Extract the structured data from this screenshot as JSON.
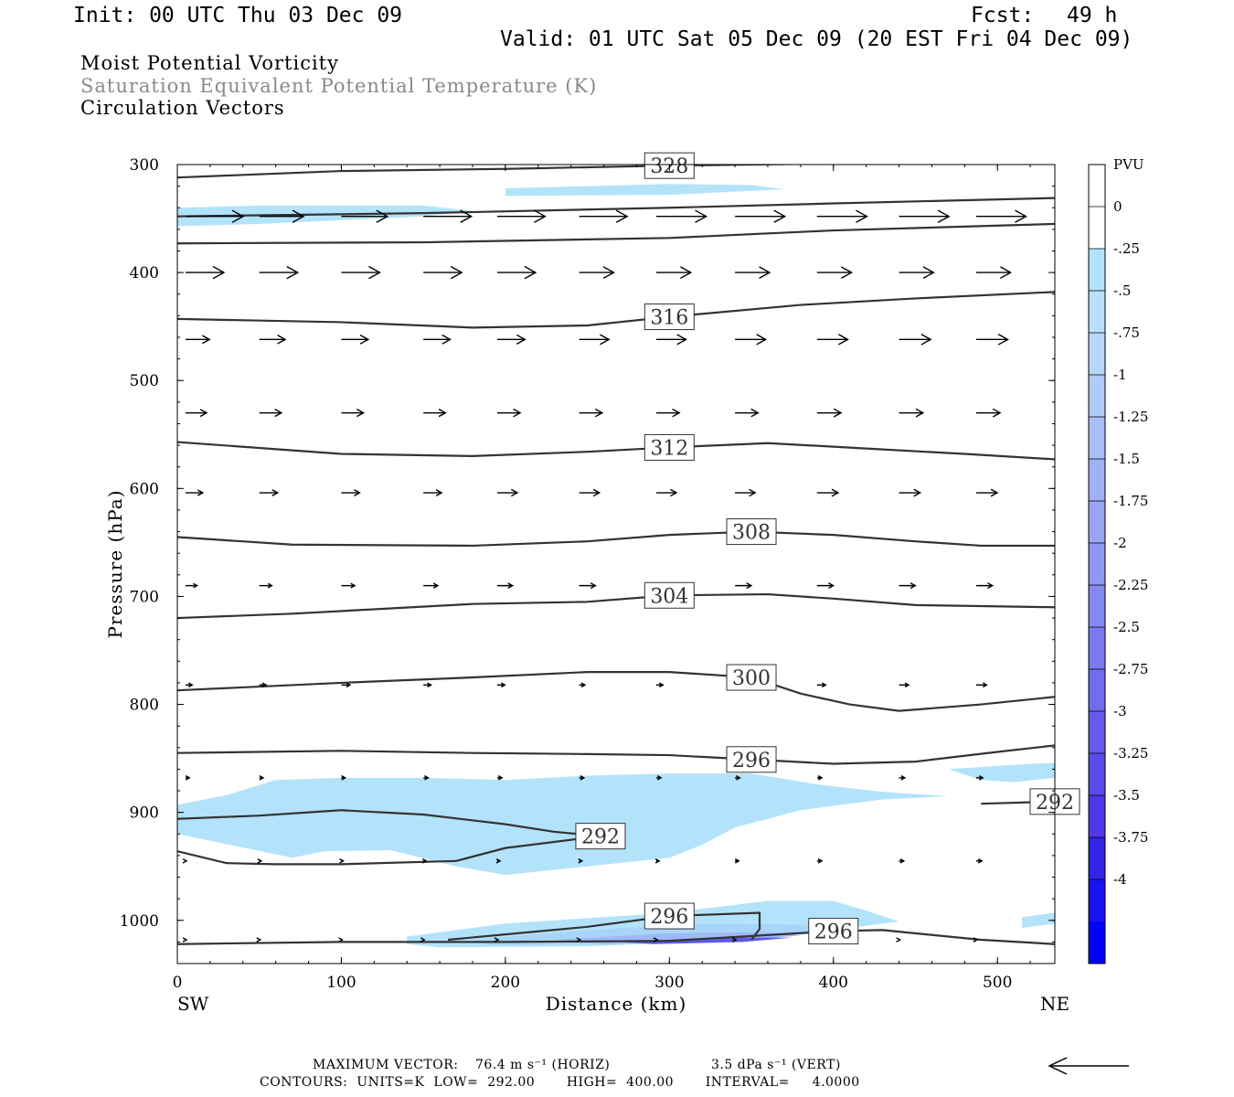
{
  "header": {
    "init": "Init: 00 UTC Thu 03 Dec 09",
    "fcst_label": "Fcst:",
    "fcst_value": "49 h",
    "valid": "Valid: 01 UTC Sat 05 Dec 09 (20 EST Fri 04 Dec 09)"
  },
  "fields": {
    "line1": "Moist Potential Vorticity",
    "line2": "Saturation Equivalent Potential Temperature (K)",
    "line3": "Circulation Vectors"
  },
  "footer": {
    "max_vector": "MAXIMUM VECTOR:",
    "horiz": "76.4 m s⁻¹ (HORIZ)",
    "vert": "3.5 dPa s⁻¹ (VERT)",
    "contours": "CONTOURS:  UNITS=K  LOW=  292.00       HIGH=  400.00       INTERVAL=     4.0000"
  },
  "colors": {
    "contour": "#333333",
    "vector": "#000000",
    "shade_light": "#b3e3fb",
    "shade_mid": "#9fb8f6",
    "shade_dark": "#5b5bea"
  },
  "chart_data": {
    "type": "cross-section",
    "xlabel": "Distance (km)",
    "ylabel": "Pressure (hPa)",
    "xlim": [
      0,
      535
    ],
    "ylim": [
      1040,
      300
    ],
    "x_ticks": [
      "0",
      "100",
      "200",
      "300",
      "400",
      "500"
    ],
    "y_ticks": [
      "300",
      "400",
      "500",
      "600",
      "700",
      "800",
      "900",
      "1000"
    ],
    "x_end_labels": {
      "left": "SW",
      "right": "NE"
    },
    "colorbar": {
      "unit": "PVU",
      "levels": [
        "0",
        "-.25",
        "-.5",
        "-.75",
        "-1",
        "-1.25",
        "-1.5",
        "-1.75",
        "-2",
        "-2.25",
        "-2.5",
        "-2.75",
        "-3",
        "-3.25",
        "-3.5",
        "-3.75",
        "-4"
      ],
      "colors": [
        "#ffffff",
        "#ffffff",
        "#b3e3fb",
        "#b9e0fb",
        "#b8d6fa",
        "#b0cbf9",
        "#a8bff8",
        "#9fb2f6",
        "#97a5f4",
        "#8e98f3",
        "#8489f1",
        "#7a7bef",
        "#706cee",
        "#655cec",
        "#5a4bea",
        "#4e38e8",
        "#3324e6",
        "#1a12f0",
        "#0000ff"
      ]
    },
    "theta_es_contours": [
      {
        "label": "328",
        "points": [
          [
            0,
            312
          ],
          [
            100,
            306
          ],
          [
            200,
            304
          ],
          [
            300,
            301
          ],
          [
            400,
            299
          ],
          [
            535,
            296
          ]
        ]
      },
      {
        "label": "",
        "points": [
          [
            0,
            348
          ],
          [
            150,
            345
          ],
          [
            300,
            340
          ],
          [
            400,
            336
          ],
          [
            535,
            331
          ]
        ]
      },
      {
        "label": "",
        "points": [
          [
            0,
            373
          ],
          [
            150,
            372
          ],
          [
            300,
            368
          ],
          [
            400,
            361
          ],
          [
            535,
            355
          ]
        ]
      },
      {
        "label": "316",
        "points": [
          [
            0,
            443
          ],
          [
            100,
            446
          ],
          [
            180,
            451
          ],
          [
            250,
            449
          ],
          [
            300,
            441
          ],
          [
            380,
            430
          ],
          [
            450,
            424
          ],
          [
            535,
            418
          ]
        ]
      },
      {
        "label": "312",
        "points": [
          [
            0,
            557
          ],
          [
            100,
            568
          ],
          [
            180,
            570
          ],
          [
            250,
            566
          ],
          [
            300,
            562
          ],
          [
            360,
            558
          ],
          [
            420,
            563
          ],
          [
            480,
            568
          ],
          [
            535,
            573
          ]
        ]
      },
      {
        "label": "308",
        "points": [
          [
            0,
            645
          ],
          [
            70,
            652
          ],
          [
            180,
            653
          ],
          [
            250,
            649
          ],
          [
            300,
            643
          ],
          [
            350,
            640
          ],
          [
            400,
            643
          ],
          [
            450,
            649
          ],
          [
            490,
            653
          ],
          [
            535,
            653
          ]
        ]
      },
      {
        "label": "304",
        "points": [
          [
            0,
            720
          ],
          [
            70,
            716
          ],
          [
            180,
            707
          ],
          [
            250,
            705
          ],
          [
            300,
            699
          ],
          [
            360,
            698
          ],
          [
            400,
            702
          ],
          [
            450,
            708
          ],
          [
            535,
            710
          ]
        ]
      },
      {
        "label": "300",
        "points": [
          [
            0,
            787
          ],
          [
            100,
            780
          ],
          [
            180,
            775
          ],
          [
            250,
            770
          ],
          [
            300,
            770
          ],
          [
            350,
            775
          ],
          [
            380,
            790
          ],
          [
            410,
            800
          ],
          [
            440,
            806
          ],
          [
            490,
            800
          ],
          [
            535,
            793
          ]
        ]
      },
      {
        "label": "296",
        "points": [
          [
            0,
            845
          ],
          [
            100,
            843
          ],
          [
            180,
            845
          ],
          [
            250,
            846
          ],
          [
            300,
            847
          ],
          [
            350,
            851
          ],
          [
            400,
            855
          ],
          [
            450,
            853
          ],
          [
            500,
            844
          ],
          [
            535,
            838
          ]
        ]
      },
      {
        "label": "292",
        "points": [
          [
            0,
            906
          ],
          [
            50,
            903
          ],
          [
            100,
            898
          ],
          [
            150,
            902
          ],
          [
            200,
            911
          ],
          [
            230,
            918
          ],
          [
            258,
            922
          ],
          [
            200,
            933
          ],
          [
            170,
            945
          ],
          [
            100,
            948
          ],
          [
            60,
            948
          ],
          [
            30,
            947
          ],
          [
            0,
            936
          ]
        ]
      },
      {
        "label": "292",
        "points": [
          [
            490,
            892
          ],
          [
            535,
            890
          ]
        ]
      },
      {
        "label": "296",
        "points": [
          [
            165,
            1018
          ],
          [
            200,
            1013
          ],
          [
            250,
            1006
          ],
          [
            300,
            996
          ],
          [
            355,
            993
          ],
          [
            355,
            1008
          ],
          [
            350,
            1018
          ]
        ]
      },
      {
        "label": "296",
        "points": [
          [
            0,
            1022
          ],
          [
            100,
            1020
          ],
          [
            200,
            1020
          ],
          [
            300,
            1019
          ],
          [
            400,
            1010
          ],
          [
            430,
            1009
          ],
          [
            490,
            1018
          ],
          [
            535,
            1022
          ]
        ]
      }
    ],
    "mpv_shading": [
      {
        "level": "-0.25",
        "points": [
          [
            0,
            340
          ],
          [
            50,
            338
          ],
          [
            150,
            338
          ],
          [
            180,
            343
          ],
          [
            150,
            348
          ],
          [
            50,
            355
          ],
          [
            0,
            357
          ]
        ]
      },
      {
        "level": "-0.25",
        "points": [
          [
            200,
            322
          ],
          [
            300,
            318
          ],
          [
            350,
            319
          ],
          [
            370,
            323
          ],
          [
            300,
            328
          ],
          [
            200,
            329
          ]
        ]
      },
      {
        "level": "-0.25",
        "points": [
          [
            0,
            893
          ],
          [
            30,
            884
          ],
          [
            60,
            870
          ],
          [
            100,
            868
          ],
          [
            150,
            868
          ],
          [
            200,
            870
          ],
          [
            250,
            866
          ],
          [
            300,
            864
          ],
          [
            350,
            864
          ],
          [
            390,
            874
          ],
          [
            430,
            881
          ],
          [
            470,
            885
          ],
          [
            430,
            888
          ],
          [
            380,
            898
          ],
          [
            340,
            914
          ],
          [
            320,
            930
          ],
          [
            300,
            942
          ],
          [
            250,
            950
          ],
          [
            200,
            958
          ],
          [
            170,
            950
          ],
          [
            130,
            935
          ],
          [
            90,
            936
          ],
          [
            70,
            942
          ],
          [
            0,
            920
          ]
        ]
      },
      {
        "level": "-0.25",
        "points": [
          [
            470,
            860
          ],
          [
            510,
            856
          ],
          [
            535,
            854
          ],
          [
            535,
            868
          ],
          [
            510,
            872
          ],
          [
            490,
            870
          ]
        ]
      },
      {
        "level": "-0.25",
        "points": [
          [
            140,
            1015
          ],
          [
            200,
            1003
          ],
          [
            300,
            993
          ],
          [
            360,
            982
          ],
          [
            400,
            982
          ],
          [
            420,
            991
          ],
          [
            440,
            1001
          ],
          [
            400,
            1009
          ],
          [
            350,
            1018
          ],
          [
            250,
            1024
          ],
          [
            160,
            1025
          ],
          [
            140,
            1022
          ]
        ]
      },
      {
        "level": "-0.5",
        "points": [
          [
            180,
            1018
          ],
          [
            250,
            1009
          ],
          [
            320,
            1003
          ],
          [
            380,
            1004
          ],
          [
            400,
            1010
          ],
          [
            350,
            1018
          ],
          [
            250,
            1022
          ],
          [
            190,
            1023
          ]
        ]
      },
      {
        "level": "-1",
        "points": [
          [
            230,
            1018
          ],
          [
            300,
            1012
          ],
          [
            360,
            1011
          ],
          [
            380,
            1014
          ],
          [
            340,
            1019
          ],
          [
            260,
            1022
          ]
        ]
      },
      {
        "level": "-2",
        "points": [
          [
            270,
            1020
          ],
          [
            330,
            1016
          ],
          [
            375,
            1016
          ],
          [
            345,
            1020
          ],
          [
            290,
            1022
          ]
        ]
      },
      {
        "level": "-0.25",
        "points": [
          [
            515,
            997
          ],
          [
            535,
            993
          ],
          [
            535,
            1003
          ],
          [
            515,
            1007
          ]
        ]
      }
    ],
    "vectors": [
      {
        "p": 348,
        "u": [
          60,
          46,
          48,
          50,
          50,
          50,
          52,
          52,
          52,
          52,
          52
        ]
      },
      {
        "p": 400,
        "u": [
          40,
          40,
          40,
          40,
          40,
          36,
          36,
          36,
          36,
          36,
          36
        ]
      },
      {
        "p": 462,
        "u": [
          25,
          27,
          28,
          28,
          29,
          31,
          31,
          32,
          32,
          33,
          33
        ]
      },
      {
        "p": 530,
        "u": [
          22,
          23,
          23,
          23,
          24,
          24,
          24,
          24,
          25,
          25,
          25
        ]
      },
      {
        "p": 604,
        "u": [
          18,
          19,
          19,
          19,
          21,
          21,
          21,
          21,
          22,
          22,
          22
        ]
      },
      {
        "p": 690,
        "u": [
          12,
          13,
          14,
          15,
          16,
          17,
          17,
          17,
          17,
          17,
          17
        ]
      },
      {
        "p": 782,
        "u": [
          7,
          7,
          9,
          8,
          8,
          6,
          7,
          8,
          9,
          10,
          11
        ]
      },
      {
        "p": 868,
        "u": [
          4,
          4,
          4,
          5,
          5,
          5,
          5,
          5,
          5,
          6,
          7
        ]
      },
      {
        "p": 945,
        "u": [
          1,
          2,
          2,
          3,
          3,
          3,
          3,
          4,
          5,
          5,
          6
        ]
      },
      {
        "p": 1018,
        "u": [
          1,
          1,
          1,
          1,
          1,
          1,
          1,
          1,
          1,
          1,
          1
        ]
      }
    ],
    "vector_x": [
      5,
      50,
      100,
      150,
      195,
      245,
      292,
      340,
      390,
      440,
      487
    ]
  }
}
